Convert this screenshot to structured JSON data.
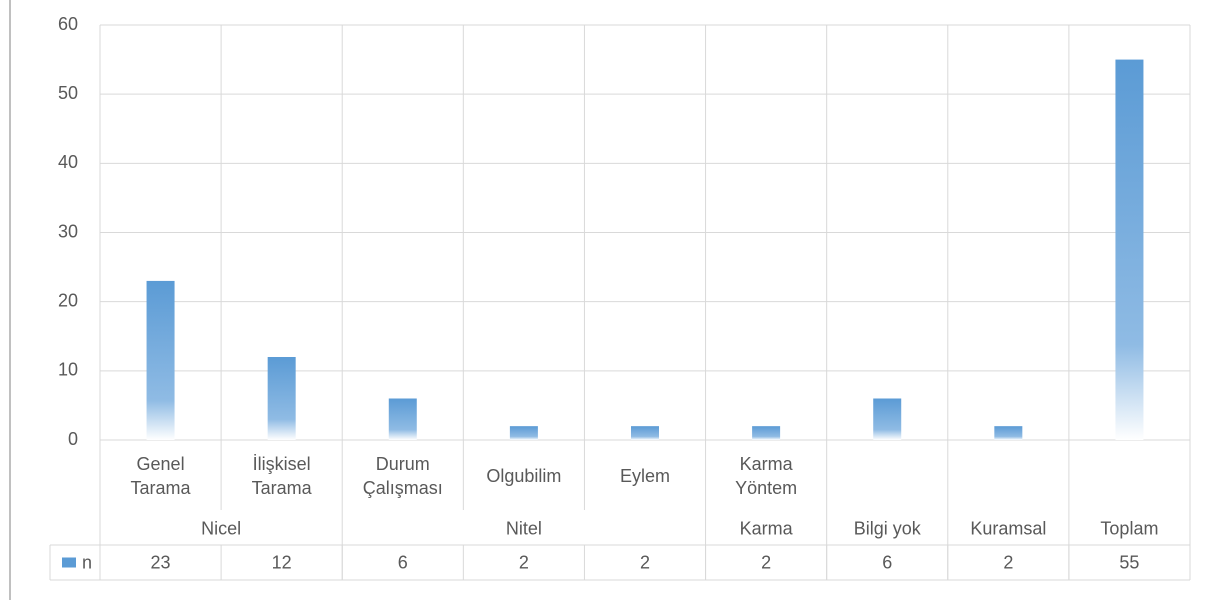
{
  "chart_data": {
    "type": "bar",
    "groups": [
      {
        "name": "Nicel",
        "items": [
          "Genel Tarama",
          "İlişkisel Tarama"
        ]
      },
      {
        "name": "Nitel",
        "items": [
          "Durum Çalışması",
          "Olgubilim",
          "Eylem"
        ]
      },
      {
        "name": "Karma",
        "items": [
          "Karma Yöntem"
        ]
      },
      {
        "name": "Bilgi yok",
        "items": [
          null
        ]
      },
      {
        "name": "Kuramsal",
        "items": [
          null
        ]
      },
      {
        "name": "Toplam",
        "items": [
          null
        ]
      }
    ],
    "series": [
      {
        "name": "n",
        "color": "#5b9bd5",
        "values": [
          23,
          12,
          6,
          2,
          2,
          2,
          6,
          2,
          55
        ]
      }
    ],
    "ylim": [
      0,
      60
    ],
    "yticks": [
      0,
      10,
      20,
      30,
      40,
      50,
      60
    ],
    "grid": true,
    "data_table": true
  }
}
